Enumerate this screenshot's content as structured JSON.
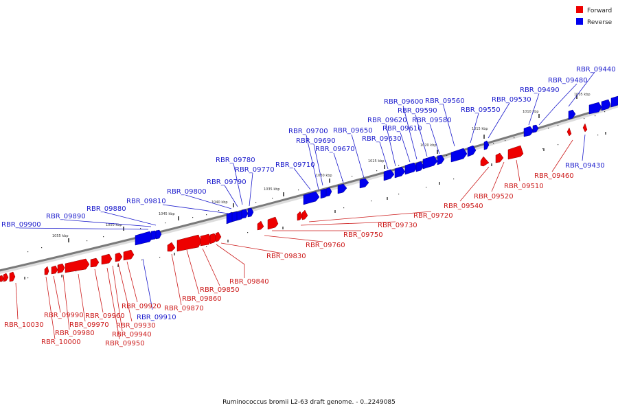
{
  "caption": "Ruminococcus bromii L2-63 draft genome. - 0..2249085",
  "legend": [
    {
      "label": "Forward",
      "color": "#ee0000"
    },
    {
      "label": "Reverse",
      "color": "#0000ee"
    }
  ],
  "scale_labels": [
    "1005 kbp",
    "1010 kbp",
    "1015 kbp",
    "1020 kbp",
    "1025 kbp",
    "1030 kbp",
    "1035 kbp",
    "1040 kbp",
    "1045 kbp",
    "1050 kbp",
    "1055 kbp"
  ],
  "reverse_genes": [
    "RBR_09440",
    "RBR_09480",
    "RBR_09490",
    "RBR_09530",
    "RBR_09550",
    "RBR_09560",
    "RBR_09580",
    "RBR_09590",
    "RBR_09600",
    "RBR_09610",
    "RBR_09620",
    "RBR_09630",
    "RBR_09650",
    "RBR_09670",
    "RBR_09690",
    "RBR_09700",
    "RBR_09710",
    "RBR_09770",
    "RBR_09780",
    "RBR_09790",
    "RBR_09800",
    "RBR_09810",
    "RBR_09880",
    "RBR_09890",
    "RBR_09900",
    "RBR_09430",
    "RBR_09910"
  ],
  "forward_genes": [
    "RBR_09460",
    "RBR_09510",
    "RBR_09520",
    "RBR_09540",
    "RBR_09720",
    "RBR_09730",
    "RBR_09750",
    "RBR_09760",
    "RBR_09830",
    "RBR_09840",
    "RBR_09850",
    "RBR_09860",
    "RBR_09870",
    "RBR_09920",
    "RBR_09930",
    "RBR_09940",
    "RBR_09950",
    "RBR_09960",
    "RBR_09970",
    "RBR_09980",
    "RBR_09990",
    "RBR_10000",
    "RBR_10030"
  ]
}
